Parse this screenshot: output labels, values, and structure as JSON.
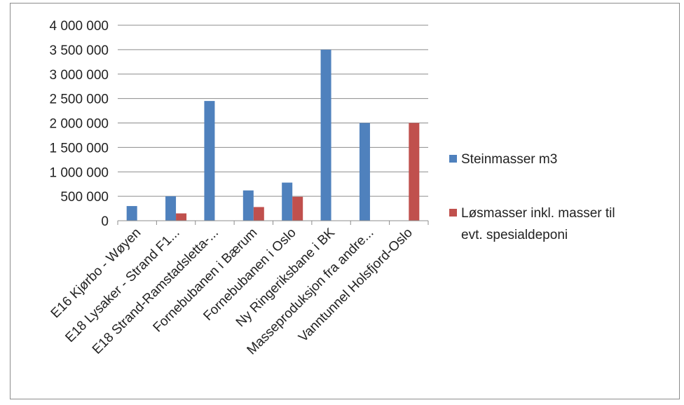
{
  "chart_data": {
    "type": "bar",
    "categories": [
      "E16 Kjørbo - Wøyen",
      "E18 Lysaker - Strand F1...",
      "E18 Strand-Ramstadsletta-...",
      "Fornebubanen i Bærum",
      "Fornebubanen i Oslo",
      "Ny Ringeriksbane i BK",
      "Masseproduksjon fra andre...",
      "Vanntunnel Holsfjord-Oslo"
    ],
    "series": [
      {
        "name": "Steinmasser m3",
        "color": "#4f81bd",
        "values": [
          300000,
          500000,
          2450000,
          620000,
          780000,
          3500000,
          2000000,
          0
        ]
      },
      {
        "name": "Løsmasser inkl. masser til evt. spesialdeponi",
        "color": "#c0504d",
        "values": [
          0,
          150000,
          0,
          280000,
          490000,
          0,
          0,
          2000000
        ]
      }
    ],
    "ylim": [
      0,
      4000000
    ],
    "yticks": [
      0,
      500000,
      1000000,
      1500000,
      2000000,
      2500000,
      3000000,
      3500000,
      4000000
    ],
    "ytick_labels": [
      "0",
      "500 000",
      "1 000 000",
      "1 500 000",
      "2 000 000",
      "2 500 000",
      "3 000 000",
      "3 500 000",
      "4 000 000"
    ],
    "legend": {
      "position": "right",
      "entries": [
        {
          "lines": [
            "Steinmasser m3"
          ]
        },
        {
          "lines": [
            "Løsmasser inkl. masser til",
            "evt. spesialdeponi"
          ]
        }
      ]
    },
    "grid": "horizontal",
    "title": "",
    "xlabel": "",
    "ylabel": ""
  }
}
